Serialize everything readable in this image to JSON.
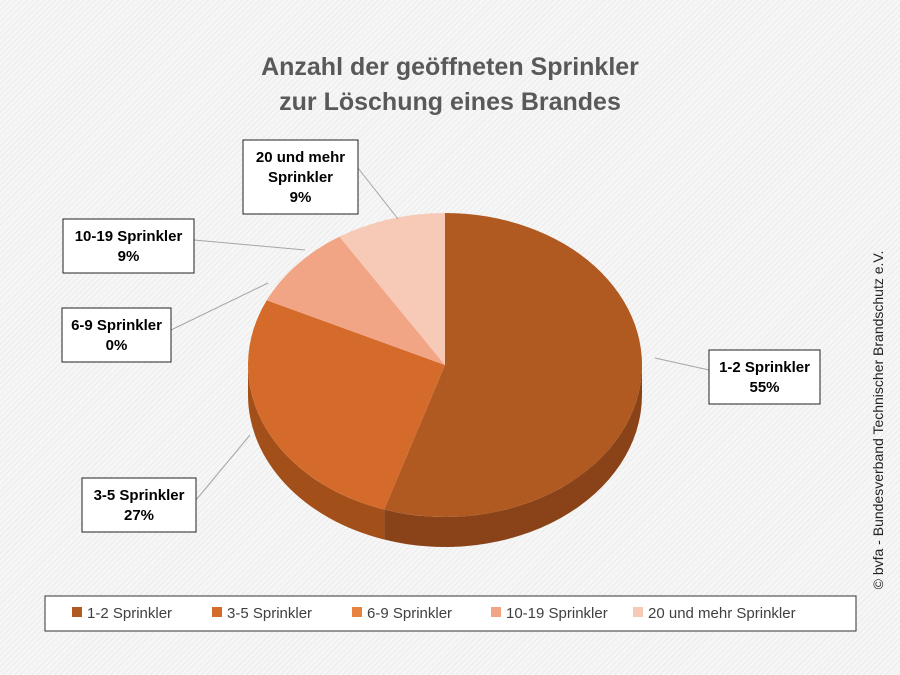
{
  "chart_data": {
    "type": "pie",
    "title": [
      "Anzahl der geöffneten Sprinkler",
      "zur Löschung eines Brandes"
    ],
    "slices": [
      {
        "name": "1-2 Sprinkler",
        "value": 55,
        "label_lines": [
          "1-2 Sprinkler",
          "55%"
        ],
        "color": "#b05a22",
        "side": "#8a4318"
      },
      {
        "name": "3-5 Sprinkler",
        "value": 27,
        "label_lines": [
          "3-5 Sprinkler",
          "27%"
        ],
        "color": "#d46b2a",
        "side": "#a34f1a"
      },
      {
        "name": "6-9 Sprinkler",
        "value": 0,
        "label_lines": [
          "6-9 Sprinkler",
          "0%"
        ],
        "color": "#e8823f",
        "side": "#b8622c"
      },
      {
        "name": "10-19 Sprinkler",
        "value": 9,
        "label_lines": [
          "10-19 Sprinkler",
          "9%"
        ],
        "color": "#f2a585",
        "side": "#c98063"
      },
      {
        "name": "20 und mehr Sprinkler",
        "value": 9,
        "label_lines": [
          "20 und mehr",
          "Sprinkler",
          "9%"
        ],
        "color": "#f7c9b7",
        "side": "#d4a08c"
      }
    ],
    "legend_position": "bottom"
  },
  "copyright": "© bvfa - Bundesverband Technischer Brandschutz e.V."
}
